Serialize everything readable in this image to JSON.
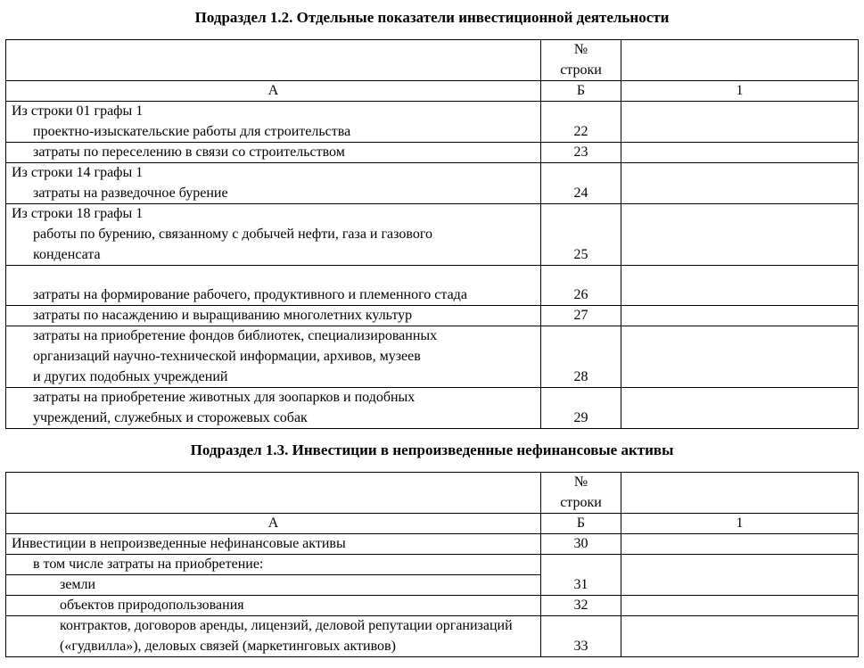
{
  "section1": {
    "title": "Подраздел 1.2. Отдельные показатели инвестиционной деятельности",
    "header": {
      "num_top": "№",
      "num_bot": "строки",
      "col_a": "А",
      "col_b": "Б",
      "col_1": "1"
    },
    "rows": [
      {
        "text": "Из строки 01 графы 1",
        "b": "",
        "indent": 0,
        "open": "down"
      },
      {
        "text": "проектно-изыскательские работы для строительства",
        "b": "22",
        "indent": 1,
        "open": "up"
      },
      {
        "text": "затраты по переселению в связи со строительством",
        "b": "23",
        "indent": 1
      },
      {
        "text": "Из строки 14 графы 1",
        "b": "",
        "indent": 0,
        "open": "down"
      },
      {
        "text": "затраты на разведочное бурение",
        "b": "24",
        "indent": 1,
        "open": "up"
      },
      {
        "text": "Из строки 18 графы 1",
        "b": "",
        "indent": 0,
        "open": "down"
      },
      {
        "text": "работы по бурению, связанному с добычей нефти, газа и газового",
        "b": "",
        "indent": 1,
        "open": "both"
      },
      {
        "text": "конденсата",
        "b": "25",
        "indent": 1,
        "open": "up"
      },
      {
        "text": "",
        "b": "",
        "indent": 1,
        "open": "down",
        "blank": true
      },
      {
        "text": "затраты на формирование рабочего, продуктивного и племенного стада",
        "b": "26",
        "indent": 1,
        "open": "up"
      },
      {
        "text": "затраты по насаждению и выращиванию многолетних культур",
        "b": "27",
        "indent": 1
      },
      {
        "text": "затраты на приобретение фондов библиотек, специализированных",
        "b": "",
        "indent": 1,
        "open": "down"
      },
      {
        "text": "организаций научно-технической информации, архивов, музеев",
        "b": "",
        "indent": 1,
        "open": "both"
      },
      {
        "text": "и других подобных учреждений",
        "b": "28",
        "indent": 1,
        "open": "up"
      },
      {
        "text": "затраты на приобретение животных для зоопарков и подобных",
        "b": "",
        "indent": 1,
        "open": "down"
      },
      {
        "text": "учреждений, служебных и сторожевых собак",
        "b": "29",
        "indent": 1,
        "open": "up"
      }
    ]
  },
  "section2": {
    "title": "Подраздел 1.3. Инвестиции в непроизведенные нефинансовые активы",
    "header": {
      "num_top": "№",
      "num_bot": "строки",
      "col_a": "А",
      "col_b": "Б",
      "col_1": "1"
    },
    "rows": [
      {
        "text": "Инвестиции в непроизведенные нефинансовые активы",
        "b": "30",
        "indent": 0
      },
      {
        "text": "в том числе затраты на приобретение:",
        "b": "",
        "indent": 1,
        "open": "down",
        "underlineA": true
      },
      {
        "text": "земли",
        "b": "31",
        "indent": 2,
        "open": "up"
      },
      {
        "text": "объектов природопользования",
        "b": "32",
        "indent": 2
      },
      {
        "text": "контрактов, договоров аренды, лицензий, деловой репутации организаций",
        "b": "",
        "indent": 2,
        "open": "down"
      },
      {
        "text": "(«гудвилла»), деловых связей (маркетинговых активов)",
        "b": "33",
        "indent": 2,
        "open": "up"
      }
    ]
  }
}
